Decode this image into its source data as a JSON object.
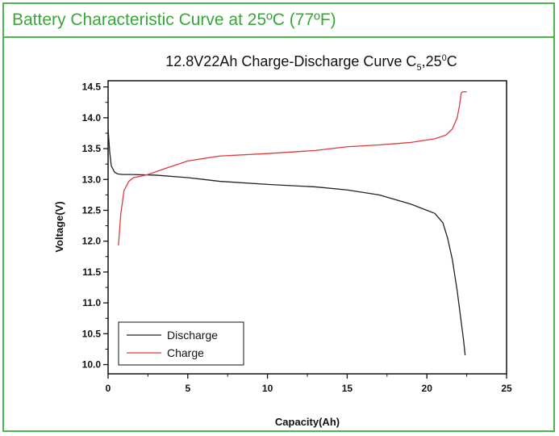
{
  "header": {
    "title": "Battery Characteristic Curve at 25ºC (77ºF)"
  },
  "colors": {
    "frame": "#49b849",
    "header_text": "#3aa63a",
    "discharge": "#222222",
    "charge": "#e23a3a"
  },
  "chart_data": {
    "type": "line",
    "title_parts": {
      "main": "12.8V22Ah Charge-Discharge Curve  C",
      "sub": "5",
      "comma": ",25",
      "sup": "0",
      "unit": "C"
    },
    "xlabel": "Capacity(Ah)",
    "ylabel": "Voltage(V)",
    "xlim": [
      0,
      25
    ],
    "ylim": [
      9.85,
      14.6
    ],
    "x_ticks": [
      0,
      5,
      10,
      15,
      20,
      25
    ],
    "y_ticks": [
      "10.0",
      "10.5",
      "11.0",
      "11.5",
      "12.0",
      "12.5",
      "13.0",
      "13.5",
      "14.0",
      "14.5"
    ],
    "grid": false,
    "legend_position": "bottom-left",
    "series": [
      {
        "name": "Discharge",
        "x": [
          0.0,
          0.1,
          0.2,
          0.4,
          0.6,
          0.9,
          1.5,
          3,
          5,
          7,
          10,
          13,
          15,
          17,
          19,
          20,
          20.5,
          21,
          21.3,
          21.6,
          21.9,
          22.1,
          22.3,
          22.4
        ],
        "y": [
          13.82,
          13.45,
          13.22,
          13.12,
          13.09,
          13.08,
          13.08,
          13.07,
          13.03,
          12.97,
          12.92,
          12.88,
          12.83,
          12.75,
          12.6,
          12.5,
          12.45,
          12.3,
          12.05,
          11.7,
          11.2,
          10.8,
          10.4,
          10.15
        ]
      },
      {
        "name": "Charge",
        "x": [
          0.65,
          0.8,
          1.0,
          1.3,
          1.6,
          2.0,
          2.5,
          3.5,
          5,
          7,
          10,
          13,
          15,
          17,
          19,
          20.5,
          21.2,
          21.6,
          21.9,
          22.05,
          22.15,
          22.25,
          22.5
        ],
        "y": [
          11.93,
          12.45,
          12.82,
          12.97,
          13.03,
          13.05,
          13.08,
          13.17,
          13.3,
          13.38,
          13.42,
          13.47,
          13.53,
          13.56,
          13.6,
          13.66,
          13.72,
          13.82,
          14.0,
          14.2,
          14.4,
          14.42,
          14.42
        ]
      }
    ]
  }
}
